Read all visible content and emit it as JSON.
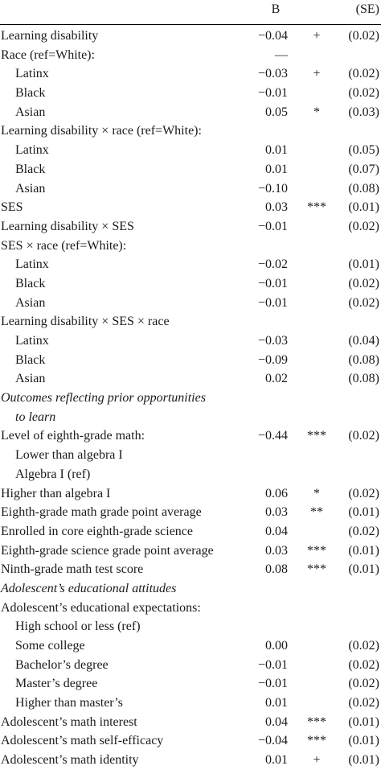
{
  "header": {
    "b": "B",
    "se": "(SE)"
  },
  "rows": [
    {
      "label": "Learning disability",
      "b": "−0.04",
      "sig": "+",
      "se": "(0.02)",
      "style": "main"
    },
    {
      "label": "Race (ref=White):",
      "b": "—",
      "sig": "",
      "se": "",
      "style": "main"
    },
    {
      "label": "Latinx",
      "b": "−0.03",
      "sig": "+",
      "se": "(0.02)",
      "style": "indent"
    },
    {
      "label": "Black",
      "b": "−0.01",
      "sig": "",
      "se": "(0.02)",
      "style": "indent"
    },
    {
      "label": "Asian",
      "b": "0.05",
      "sig": "*",
      "se": "(0.03)",
      "style": "indent"
    },
    {
      "label": "Learning disability × race (ref=White):",
      "b": "",
      "sig": "",
      "se": "",
      "style": "main"
    },
    {
      "label": "Latinx",
      "b": "0.01",
      "sig": "",
      "se": "(0.05)",
      "style": "indent"
    },
    {
      "label": "Black",
      "b": "0.01",
      "sig": "",
      "se": "(0.07)",
      "style": "indent"
    },
    {
      "label": "Asian",
      "b": "−0.10",
      "sig": "",
      "se": "(0.08)",
      "style": "indent"
    },
    {
      "label": "SES",
      "b": "0.03",
      "sig": "***",
      "se": "(0.01)",
      "style": "main"
    },
    {
      "label": "Learning disability × SES",
      "b": "−0.01",
      "sig": "",
      "se": "(0.02)",
      "style": "main"
    },
    {
      "label": "SES × race (ref=White):",
      "b": "",
      "sig": "",
      "se": "",
      "style": "main"
    },
    {
      "label": "Latinx",
      "b": "−0.02",
      "sig": "",
      "se": "(0.01)",
      "style": "indent"
    },
    {
      "label": "Black",
      "b": "−0.01",
      "sig": "",
      "se": "(0.02)",
      "style": "indent"
    },
    {
      "label": "Asian",
      "b": "−0.01",
      "sig": "",
      "se": "(0.02)",
      "style": "indent"
    },
    {
      "label": "Learning disability × SES × race",
      "b": "",
      "sig": "",
      "se": "",
      "style": "main"
    },
    {
      "label": "Latinx",
      "b": "−0.03",
      "sig": "",
      "se": "(0.04)",
      "style": "indent"
    },
    {
      "label": "Black",
      "b": "−0.09",
      "sig": "",
      "se": "(0.08)",
      "style": "indent"
    },
    {
      "label": "Asian",
      "b": "0.02",
      "sig": "",
      "se": "(0.08)",
      "style": "indent"
    },
    {
      "label": "Outcomes reflecting prior opportunities",
      "b": "",
      "sig": "",
      "se": "",
      "style": "section"
    },
    {
      "label": "to learn",
      "b": "",
      "sig": "",
      "se": "",
      "style": "section-indent"
    },
    {
      "label": "Level of eighth-grade math:",
      "b": "−0.44",
      "sig": "***",
      "se": "(0.02)",
      "style": "main"
    },
    {
      "label": "Lower than algebra I",
      "b": "",
      "sig": "",
      "se": "",
      "style": "indent"
    },
    {
      "label": "Algebra I (ref)",
      "b": "",
      "sig": "",
      "se": "",
      "style": "indent"
    },
    {
      "label": "Higher than algebra I",
      "b": "0.06",
      "sig": "*",
      "se": "(0.02)",
      "style": "main"
    },
    {
      "label": "Eighth-grade math grade point average",
      "b": "0.03",
      "sig": "**",
      "se": "(0.01)",
      "style": "main"
    },
    {
      "label": "Enrolled in core eighth-grade science",
      "b": "0.04",
      "sig": "",
      "se": "(0.02)",
      "style": "main"
    },
    {
      "label": "Eighth-grade science grade point average",
      "b": "0.03",
      "sig": "***",
      "se": "(0.01)",
      "style": "main"
    },
    {
      "label": "Ninth-grade math test score",
      "b": "0.08",
      "sig": "***",
      "se": "(0.01)",
      "style": "main"
    },
    {
      "label": "Adolescent’s educational attitudes",
      "b": "",
      "sig": "",
      "se": "",
      "style": "section"
    },
    {
      "label": "Adolescent’s educational expectations:",
      "b": "",
      "sig": "",
      "se": "",
      "style": "main"
    },
    {
      "label": "High school or less (ref)",
      "b": "",
      "sig": "",
      "se": "",
      "style": "indent"
    },
    {
      "label": "Some college",
      "b": "0.00",
      "sig": "",
      "se": "(0.02)",
      "style": "indent"
    },
    {
      "label": "Bachelor’s degree",
      "b": "−0.01",
      "sig": "",
      "se": "(0.02)",
      "style": "indent"
    },
    {
      "label": "Master’s degree",
      "b": "−0.01",
      "sig": "",
      "se": "(0.02)",
      "style": "indent"
    },
    {
      "label": "Higher than master’s",
      "b": "0.01",
      "sig": "",
      "se": "(0.02)",
      "style": "indent"
    },
    {
      "label": "Adolescent’s math interest",
      "b": "0.04",
      "sig": "***",
      "se": "(0.01)",
      "style": "main"
    },
    {
      "label": "Adolescent’s math self-efficacy",
      "b": "−0.04",
      "sig": "***",
      "se": "(0.01)",
      "style": "main"
    },
    {
      "label": "Adolescent’s math identity",
      "b": "0.01",
      "sig": "+",
      "se": "(0.01)",
      "style": "main"
    }
  ]
}
